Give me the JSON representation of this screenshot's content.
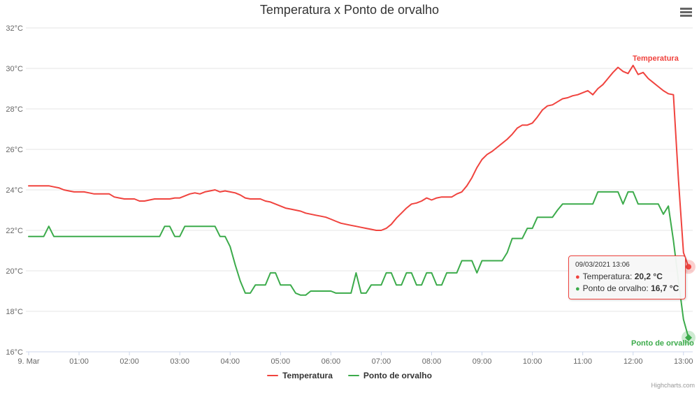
{
  "title": "Temperatura x Ponto de orvalho",
  "credits": "Highcharts.com",
  "colors": {
    "red": "#f0433e",
    "green": "#3cab4b",
    "grid": "#e6e6e6",
    "axis_line": "#ccd6eb",
    "text_muted": "#666666",
    "text_dark": "#333333"
  },
  "tooltip": {
    "datetime": "09/03/2021 13:06",
    "rows": [
      {
        "label": "Temperatura:",
        "value": "20,2 °C",
        "color": "#f0433e"
      },
      {
        "label": "Ponto de orvalho:",
        "value": "16,7 °C",
        "color": "#3cab4b"
      }
    ]
  },
  "legend": {
    "items": [
      {
        "label": "Temperatura",
        "color": "#f0433e"
      },
      {
        "label": "Ponto de orvalho",
        "color": "#3cab4b"
      }
    ]
  },
  "series_labels": {
    "temperatura": "Temperatura",
    "ponto": "Ponto de orvalho"
  },
  "chart_data": {
    "type": "line",
    "title": "Temperatura x Ponto de orvalho",
    "xlabel": "",
    "ylabel": "",
    "x_unit": "minutes after 2021-03-09 00:00",
    "xlim_minutes": [
      0,
      790
    ],
    "ylim": [
      16,
      32
    ],
    "grid": "horizontal",
    "legend_position": "bottom-center",
    "yticks": [
      {
        "v": 16,
        "label": "16°C"
      },
      {
        "v": 18,
        "label": "18°C"
      },
      {
        "v": 20,
        "label": "20°C"
      },
      {
        "v": 22,
        "label": "22°C"
      },
      {
        "v": 24,
        "label": "24°C"
      },
      {
        "v": 26,
        "label": "26°C"
      },
      {
        "v": 28,
        "label": "28°C"
      },
      {
        "v": 30,
        "label": "30°C"
      },
      {
        "v": 32,
        "label": "32°C"
      }
    ],
    "xticks": [
      {
        "h": 0,
        "label": "9. Mar"
      },
      {
        "h": 1,
        "label": "01:00"
      },
      {
        "h": 2,
        "label": "02:00"
      },
      {
        "h": 3,
        "label": "03:00"
      },
      {
        "h": 4,
        "label": "04:00"
      },
      {
        "h": 5,
        "label": "05:00"
      },
      {
        "h": 6,
        "label": "06:00"
      },
      {
        "h": 7,
        "label": "07:00"
      },
      {
        "h": 8,
        "label": "08:00"
      },
      {
        "h": 9,
        "label": "09:00"
      },
      {
        "h": 10,
        "label": "10:00"
      },
      {
        "h": 11,
        "label": "11:00"
      },
      {
        "h": 12,
        "label": "12:00"
      },
      {
        "h": 13,
        "label": "13:00"
      }
    ],
    "series": [
      {
        "name": "Temperatura",
        "color": "#f0433e",
        "marker": "circle",
        "points": [
          [
            0,
            24.2
          ],
          [
            6,
            24.2
          ],
          [
            12,
            24.2
          ],
          [
            18,
            24.2
          ],
          [
            24,
            24.2
          ],
          [
            30,
            24.15
          ],
          [
            36,
            24.1
          ],
          [
            42,
            24.0
          ],
          [
            48,
            23.95
          ],
          [
            54,
            23.9
          ],
          [
            60,
            23.9
          ],
          [
            66,
            23.9
          ],
          [
            72,
            23.85
          ],
          [
            78,
            23.8
          ],
          [
            84,
            23.8
          ],
          [
            90,
            23.8
          ],
          [
            96,
            23.8
          ],
          [
            102,
            23.65
          ],
          [
            108,
            23.6
          ],
          [
            114,
            23.55
          ],
          [
            120,
            23.55
          ],
          [
            126,
            23.55
          ],
          [
            132,
            23.45
          ],
          [
            138,
            23.45
          ],
          [
            144,
            23.5
          ],
          [
            150,
            23.55
          ],
          [
            156,
            23.55
          ],
          [
            162,
            23.55
          ],
          [
            168,
            23.55
          ],
          [
            174,
            23.6
          ],
          [
            180,
            23.6
          ],
          [
            186,
            23.7
          ],
          [
            192,
            23.8
          ],
          [
            198,
            23.85
          ],
          [
            204,
            23.8
          ],
          [
            210,
            23.9
          ],
          [
            216,
            23.95
          ],
          [
            222,
            24.0
          ],
          [
            228,
            23.9
          ],
          [
            234,
            23.95
          ],
          [
            240,
            23.9
          ],
          [
            246,
            23.85
          ],
          [
            252,
            23.75
          ],
          [
            258,
            23.6
          ],
          [
            264,
            23.55
          ],
          [
            270,
            23.55
          ],
          [
            276,
            23.55
          ],
          [
            282,
            23.45
          ],
          [
            288,
            23.4
          ],
          [
            294,
            23.3
          ],
          [
            300,
            23.2
          ],
          [
            306,
            23.1
          ],
          [
            312,
            23.05
          ],
          [
            318,
            23.0
          ],
          [
            324,
            22.95
          ],
          [
            330,
            22.85
          ],
          [
            336,
            22.8
          ],
          [
            342,
            22.75
          ],
          [
            348,
            22.7
          ],
          [
            354,
            22.65
          ],
          [
            360,
            22.55
          ],
          [
            366,
            22.45
          ],
          [
            372,
            22.35
          ],
          [
            378,
            22.3
          ],
          [
            384,
            22.25
          ],
          [
            390,
            22.2
          ],
          [
            396,
            22.15
          ],
          [
            402,
            22.1
          ],
          [
            408,
            22.05
          ],
          [
            414,
            22.0
          ],
          [
            420,
            22.0
          ],
          [
            426,
            22.1
          ],
          [
            432,
            22.3
          ],
          [
            438,
            22.6
          ],
          [
            444,
            22.85
          ],
          [
            450,
            23.1
          ],
          [
            456,
            23.3
          ],
          [
            462,
            23.35
          ],
          [
            468,
            23.45
          ],
          [
            474,
            23.6
          ],
          [
            480,
            23.5
          ],
          [
            486,
            23.6
          ],
          [
            492,
            23.65
          ],
          [
            498,
            23.65
          ],
          [
            504,
            23.65
          ],
          [
            510,
            23.8
          ],
          [
            516,
            23.9
          ],
          [
            522,
            24.2
          ],
          [
            528,
            24.6
          ],
          [
            534,
            25.1
          ],
          [
            540,
            25.5
          ],
          [
            546,
            25.75
          ],
          [
            552,
            25.9
          ],
          [
            558,
            26.1
          ],
          [
            564,
            26.3
          ],
          [
            570,
            26.5
          ],
          [
            576,
            26.75
          ],
          [
            582,
            27.05
          ],
          [
            588,
            27.2
          ],
          [
            594,
            27.2
          ],
          [
            600,
            27.3
          ],
          [
            606,
            27.6
          ],
          [
            612,
            27.95
          ],
          [
            618,
            28.15
          ],
          [
            624,
            28.2
          ],
          [
            630,
            28.35
          ],
          [
            636,
            28.5
          ],
          [
            642,
            28.55
          ],
          [
            648,
            28.65
          ],
          [
            654,
            28.7
          ],
          [
            660,
            28.8
          ],
          [
            666,
            28.9
          ],
          [
            672,
            28.7
          ],
          [
            678,
            29.0
          ],
          [
            684,
            29.2
          ],
          [
            690,
            29.5
          ],
          [
            696,
            29.8
          ],
          [
            702,
            30.05
          ],
          [
            708,
            29.85
          ],
          [
            714,
            29.75
          ],
          [
            720,
            30.15
          ],
          [
            726,
            29.7
          ],
          [
            732,
            29.8
          ],
          [
            738,
            29.5
          ],
          [
            744,
            29.3
          ],
          [
            750,
            29.1
          ],
          [
            756,
            28.9
          ],
          [
            762,
            28.75
          ],
          [
            768,
            28.7
          ],
          [
            774,
            24.5
          ],
          [
            780,
            20.9
          ],
          [
            786,
            20.2
          ]
        ]
      },
      {
        "name": "Ponto de orvalho",
        "color": "#3cab4b",
        "marker": "diamond",
        "points": [
          [
            0,
            21.7
          ],
          [
            6,
            21.7
          ],
          [
            12,
            21.7
          ],
          [
            18,
            21.7
          ],
          [
            24,
            22.2
          ],
          [
            30,
            21.7
          ],
          [
            36,
            21.7
          ],
          [
            42,
            21.7
          ],
          [
            48,
            21.7
          ],
          [
            54,
            21.7
          ],
          [
            60,
            21.7
          ],
          [
            66,
            21.7
          ],
          [
            72,
            21.7
          ],
          [
            78,
            21.7
          ],
          [
            84,
            21.7
          ],
          [
            90,
            21.7
          ],
          [
            96,
            21.7
          ],
          [
            102,
            21.7
          ],
          [
            108,
            21.7
          ],
          [
            114,
            21.7
          ],
          [
            120,
            21.7
          ],
          [
            126,
            21.7
          ],
          [
            132,
            21.7
          ],
          [
            138,
            21.7
          ],
          [
            144,
            21.7
          ],
          [
            150,
            21.7
          ],
          [
            156,
            21.7
          ],
          [
            162,
            22.2
          ],
          [
            168,
            22.2
          ],
          [
            174,
            21.7
          ],
          [
            180,
            21.7
          ],
          [
            186,
            22.2
          ],
          [
            192,
            22.2
          ],
          [
            198,
            22.2
          ],
          [
            204,
            22.2
          ],
          [
            210,
            22.2
          ],
          [
            216,
            22.2
          ],
          [
            222,
            22.2
          ],
          [
            228,
            21.7
          ],
          [
            234,
            21.7
          ],
          [
            240,
            21.2
          ],
          [
            246,
            20.3
          ],
          [
            252,
            19.5
          ],
          [
            258,
            18.9
          ],
          [
            264,
            18.9
          ],
          [
            270,
            19.3
          ],
          [
            276,
            19.3
          ],
          [
            282,
            19.3
          ],
          [
            288,
            19.9
          ],
          [
            294,
            19.9
          ],
          [
            300,
            19.3
          ],
          [
            306,
            19.3
          ],
          [
            312,
            19.3
          ],
          [
            318,
            18.9
          ],
          [
            324,
            18.8
          ],
          [
            330,
            18.8
          ],
          [
            336,
            19.0
          ],
          [
            342,
            19.0
          ],
          [
            348,
            19.0
          ],
          [
            354,
            19.0
          ],
          [
            360,
            19.0
          ],
          [
            366,
            18.9
          ],
          [
            372,
            18.9
          ],
          [
            378,
            18.9
          ],
          [
            384,
            18.9
          ],
          [
            390,
            19.9
          ],
          [
            396,
            18.9
          ],
          [
            402,
            18.9
          ],
          [
            408,
            19.3
          ],
          [
            414,
            19.3
          ],
          [
            420,
            19.3
          ],
          [
            426,
            19.9
          ],
          [
            432,
            19.9
          ],
          [
            438,
            19.3
          ],
          [
            444,
            19.3
          ],
          [
            450,
            19.9
          ],
          [
            456,
            19.9
          ],
          [
            462,
            19.3
          ],
          [
            468,
            19.3
          ],
          [
            474,
            19.9
          ],
          [
            480,
            19.9
          ],
          [
            486,
            19.3
          ],
          [
            492,
            19.3
          ],
          [
            498,
            19.9
          ],
          [
            504,
            19.9
          ],
          [
            510,
            19.9
          ],
          [
            516,
            20.5
          ],
          [
            522,
            20.5
          ],
          [
            528,
            20.5
          ],
          [
            534,
            19.9
          ],
          [
            540,
            20.5
          ],
          [
            546,
            20.5
          ],
          [
            552,
            20.5
          ],
          [
            558,
            20.5
          ],
          [
            564,
            20.5
          ],
          [
            570,
            20.9
          ],
          [
            576,
            21.6
          ],
          [
            582,
            21.6
          ],
          [
            588,
            21.6
          ],
          [
            594,
            22.1
          ],
          [
            600,
            22.1
          ],
          [
            606,
            22.65
          ],
          [
            612,
            22.65
          ],
          [
            618,
            22.65
          ],
          [
            624,
            22.65
          ],
          [
            630,
            23.0
          ],
          [
            636,
            23.3
          ],
          [
            642,
            23.3
          ],
          [
            648,
            23.3
          ],
          [
            654,
            23.3
          ],
          [
            660,
            23.3
          ],
          [
            666,
            23.3
          ],
          [
            672,
            23.3
          ],
          [
            678,
            23.9
          ],
          [
            684,
            23.9
          ],
          [
            690,
            23.9
          ],
          [
            696,
            23.9
          ],
          [
            702,
            23.9
          ],
          [
            708,
            23.3
          ],
          [
            714,
            23.9
          ],
          [
            720,
            23.9
          ],
          [
            726,
            23.3
          ],
          [
            732,
            23.3
          ],
          [
            738,
            23.3
          ],
          [
            744,
            23.3
          ],
          [
            750,
            23.3
          ],
          [
            756,
            22.8
          ],
          [
            762,
            23.2
          ],
          [
            768,
            21.5
          ],
          [
            774,
            19.5
          ],
          [
            780,
            17.6
          ],
          [
            786,
            16.7
          ]
        ]
      }
    ]
  }
}
